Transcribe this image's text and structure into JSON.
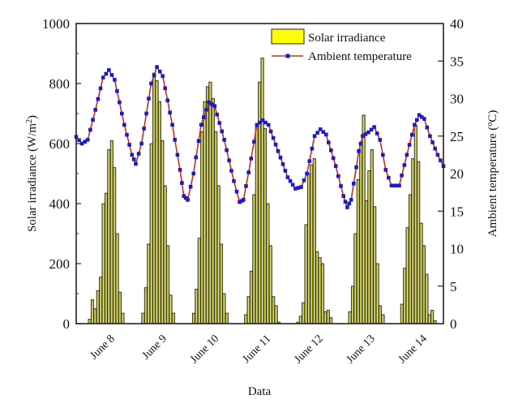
{
  "chart_data": {
    "type": "bar+line",
    "title": "",
    "xlabel": "Data",
    "ylabel_left": "Solar irradiance (W/m²)",
    "ylabel_right": "Ambient temperature (°C)",
    "ylim_left": [
      0,
      1000
    ],
    "ylim_right": [
      0,
      40
    ],
    "yticks_left": [
      0,
      200,
      400,
      600,
      800,
      1000
    ],
    "yticks_right": [
      0,
      5,
      10,
      15,
      20,
      25,
      30,
      35,
      40
    ],
    "categories": [
      "June 8",
      "June 9",
      "June 10",
      "June 11",
      "June 12",
      "June 13",
      "June 14"
    ],
    "grid": false,
    "legend_position": "top-right",
    "colors": {
      "bar_fill": "#9a9a4a",
      "bar_highlight": "#e8e860",
      "bar_edge": "#1a1a1a",
      "line": "#d42a1e",
      "marker": "#1b1bc8",
      "legend_bar": "#ffff00"
    },
    "series": [
      {
        "name": "Solar irradiance",
        "axis": "left",
        "kind": "bar",
        "days": [
          [
            15,
            80,
            50,
            110,
            155,
            400,
            435,
            580,
            610,
            520,
            300,
            105,
            35
          ],
          [
            35,
            120,
            265,
            600,
            835,
            810,
            740,
            610,
            460,
            260,
            95,
            35
          ],
          [
            35,
            115,
            285,
            640,
            740,
            790,
            805,
            750,
            640,
            460,
            265,
            100,
            35
          ],
          [
            30,
            90,
            175,
            430,
            655,
            805,
            885,
            650,
            400,
            260,
            90,
            60,
            5
          ],
          [
            5,
            25,
            70,
            330,
            500,
            530,
            550,
            240,
            220,
            200,
            40,
            45,
            20
          ],
          [
            40,
            125,
            300,
            480,
            600,
            695,
            410,
            510,
            580,
            390,
            200,
            60,
            30
          ],
          [
            65,
            185,
            320,
            430,
            550,
            660,
            540,
            335,
            260,
            165,
            30,
            45,
            10
          ]
        ]
      },
      {
        "name": "Ambient temperature",
        "axis": "right",
        "kind": "line",
        "points": [
          [
            0.0,
            24.9
          ],
          [
            0.15,
            24.0
          ],
          [
            0.3,
            24.5
          ],
          [
            0.5,
            28.5
          ],
          [
            0.7,
            32.8
          ],
          [
            0.85,
            33.8
          ],
          [
            1.0,
            32.5
          ],
          [
            1.25,
            26.5
          ],
          [
            1.45,
            22.5
          ],
          [
            1.55,
            21.3
          ],
          [
            1.7,
            24.0
          ],
          [
            1.95,
            32.0
          ],
          [
            2.1,
            34.2
          ],
          [
            2.25,
            33.0
          ],
          [
            2.5,
            26.5
          ],
          [
            2.7,
            20.5
          ],
          [
            2.8,
            17.0
          ],
          [
            2.9,
            16.5
          ],
          [
            3.05,
            20.0
          ],
          [
            3.25,
            26.5
          ],
          [
            3.45,
            29.5
          ],
          [
            3.6,
            29.0
          ],
          [
            3.85,
            24.5
          ],
          [
            4.1,
            19.0
          ],
          [
            4.25,
            16.2
          ],
          [
            4.35,
            16.5
          ],
          [
            4.55,
            22.0
          ],
          [
            4.7,
            26.5
          ],
          [
            4.85,
            27.1
          ],
          [
            5.0,
            26.5
          ],
          [
            5.25,
            23.0
          ],
          [
            5.5,
            19.5
          ],
          [
            5.7,
            18.0
          ],
          [
            5.85,
            18.2
          ],
          [
            6.0,
            20.0
          ],
          [
            6.2,
            25.0
          ],
          [
            6.35,
            25.9
          ],
          [
            6.5,
            25.2
          ],
          [
            6.75,
            21.0
          ],
          [
            6.95,
            17.0
          ],
          [
            7.05,
            15.5
          ],
          [
            7.15,
            16.5
          ],
          [
            7.35,
            23.0
          ],
          [
            7.45,
            25.0
          ],
          [
            7.6,
            25.5
          ],
          [
            7.75,
            26.2
          ],
          [
            7.9,
            24.5
          ],
          [
            8.05,
            20.5
          ],
          [
            8.2,
            18.4
          ],
          [
            8.4,
            18.4
          ],
          [
            8.6,
            22.5
          ],
          [
            8.8,
            26.5
          ],
          [
            8.92,
            27.8
          ],
          [
            9.05,
            27.3
          ],
          [
            9.2,
            25.0
          ],
          [
            9.4,
            22.5
          ],
          [
            9.55,
            21.0
          ]
        ]
      }
    ]
  },
  "legend": {
    "items": [
      {
        "label": "Solar irradiance"
      },
      {
        "label": "Ambient temperature"
      }
    ]
  }
}
